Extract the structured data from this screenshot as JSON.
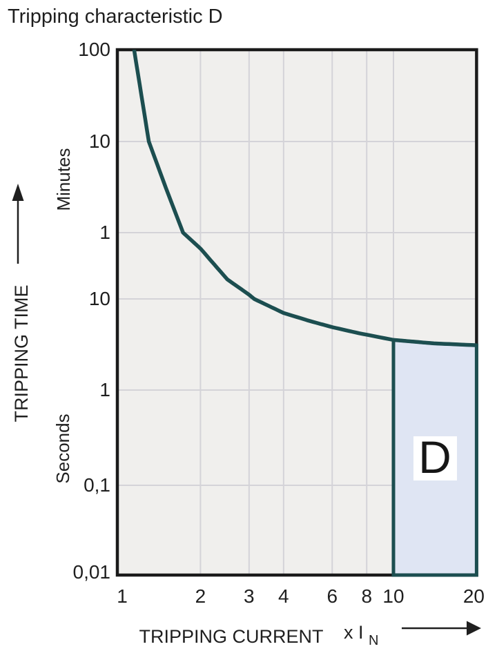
{
  "title": "Tripping characteristic D",
  "region": {
    "label": "D"
  },
  "y_axis": {
    "title": "TRIPPING TIME",
    "minutes_label": "Minutes",
    "seconds_label": "Seconds",
    "minutes_ticks": [
      {
        "label": "100",
        "minutes": 100
      },
      {
        "label": "10",
        "minutes": 10
      },
      {
        "label": "1",
        "minutes": 1
      }
    ],
    "seconds_ticks": [
      {
        "label": "10",
        "seconds": 10
      },
      {
        "label": "1",
        "seconds": 1
      },
      {
        "label": "0,1",
        "seconds": 0.1
      },
      {
        "label": "0,01",
        "seconds": 0.01
      }
    ]
  },
  "x_axis": {
    "title": "TRIPPING CURRENT",
    "multiplier_main": "x I",
    "multiplier_sub": "N",
    "ticks": [
      {
        "label": "1",
        "value": 1
      },
      {
        "label": "2",
        "value": 2
      },
      {
        "label": "3",
        "value": 3
      },
      {
        "label": "4",
        "value": 4
      },
      {
        "label": "6",
        "value": 6
      },
      {
        "label": "8",
        "value": 8
      },
      {
        "label": "10",
        "value": 10
      },
      {
        "label": "20",
        "value": 20
      }
    ]
  },
  "colors": {
    "curve": "#1c4e50",
    "region_fill": "#dfe5f3",
    "region_border": "#1c4e50",
    "plot_bg": "#f0efed",
    "grid": "#d4d3d8",
    "frame": "#1a1a1a",
    "text": "#1f1f1f",
    "label_box": "#ffffff"
  },
  "chart_data": {
    "type": "line",
    "title": "Tripping characteristic D",
    "xlabel": "TRIPPING CURRENT (x IN)",
    "ylabel": "TRIPPING TIME",
    "x_scale": "log",
    "y_scale": "log",
    "xlim": [
      1,
      20
    ],
    "y_units": "seconds (lower section), minutes (upper section)",
    "ylim_seconds": [
      0.01,
      6000
    ],
    "x_ticks": [
      1,
      2,
      3,
      4,
      6,
      8,
      10,
      20
    ],
    "y_ticks_minutes": [
      100,
      10,
      1
    ],
    "y_ticks_seconds": [
      10,
      1,
      0.1,
      0.01
    ],
    "grid": true,
    "series": [
      {
        "name": "Tripping characteristic D curve",
        "x_units": "multiples of rated current In",
        "time_units": "seconds",
        "points": [
          [
            1.15,
            6000
          ],
          [
            1.3,
            600
          ],
          [
            1.5,
            185
          ],
          [
            1.73,
            60
          ],
          [
            2,
            39
          ],
          [
            2.5,
            17
          ],
          [
            3,
            11.2
          ],
          [
            3.13,
            10
          ],
          [
            4,
            7.0
          ],
          [
            5,
            5.7
          ],
          [
            6,
            4.9
          ],
          [
            7.5,
            4.2
          ],
          [
            10,
            3.55
          ],
          [
            14,
            3.25
          ],
          [
            20,
            3.1
          ]
        ]
      }
    ],
    "shaded_region": {
      "label": "D",
      "x_range_times_In": [
        10,
        20
      ],
      "time_bottom_seconds": 0.01,
      "time_top_seconds_at_10": 3.55,
      "time_top_seconds_at_20": 3.1,
      "top_follows_curve": true
    }
  }
}
